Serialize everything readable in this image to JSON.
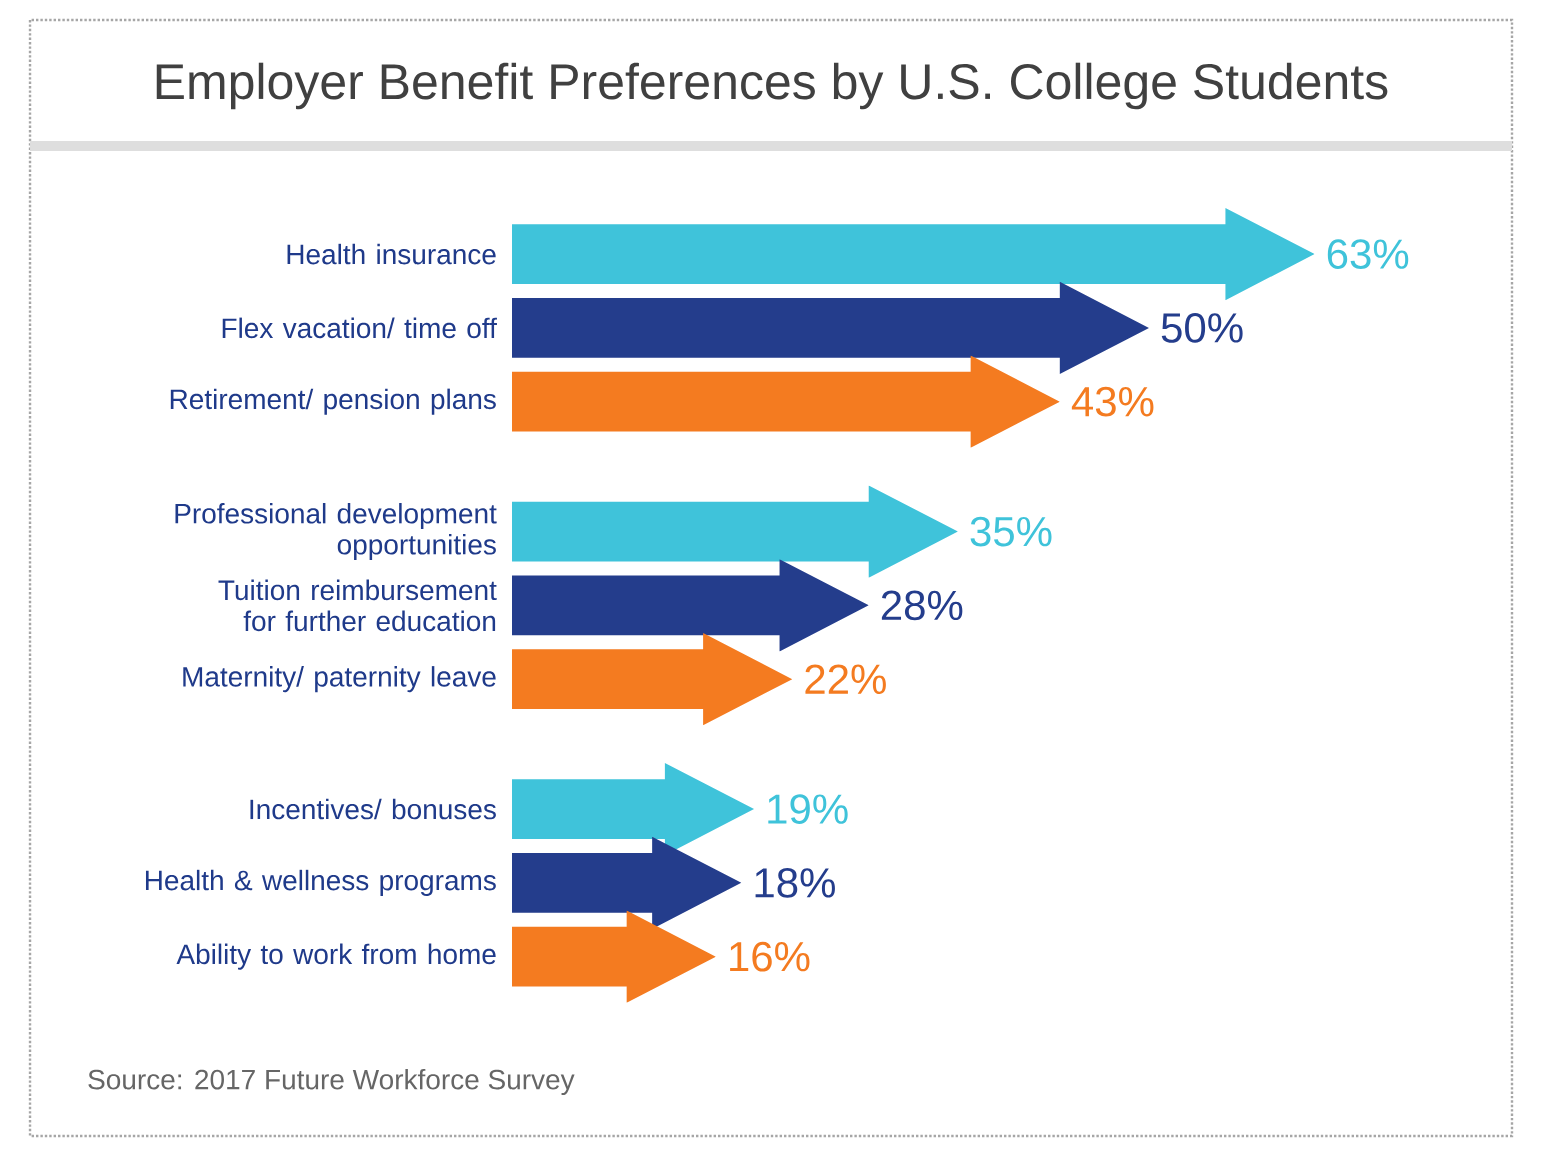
{
  "chart_data": {
    "type": "bar",
    "orientation": "horizontal",
    "title": "Employer Benefit Preferences by U.S. College Students",
    "categories": [
      "Health insurance",
      "Flex vacation/ time off",
      "Retirement/ pension plans",
      "Professional development opportunities",
      "Tuition reimbursement for further education",
      "Maternity/ paternity leave",
      "Incentives/ bonuses",
      "Health & wellness programs",
      "Ability to work from home"
    ],
    "values": [
      63,
      50,
      43,
      35,
      28,
      22,
      19,
      18,
      16
    ],
    "value_labels": [
      "63%",
      "50%",
      "43%",
      "35%",
      "28%",
      "22%",
      "19%",
      "18%",
      "16%"
    ],
    "colors": [
      "#3fc3da",
      "#243d8c",
      "#f47b20",
      "#3fc3da",
      "#243d8c",
      "#f47b20",
      "#3fc3da",
      "#243d8c",
      "#f47b20"
    ],
    "annotations": [
      "Source: 2017 Future Workforce Survey"
    ]
  }
}
